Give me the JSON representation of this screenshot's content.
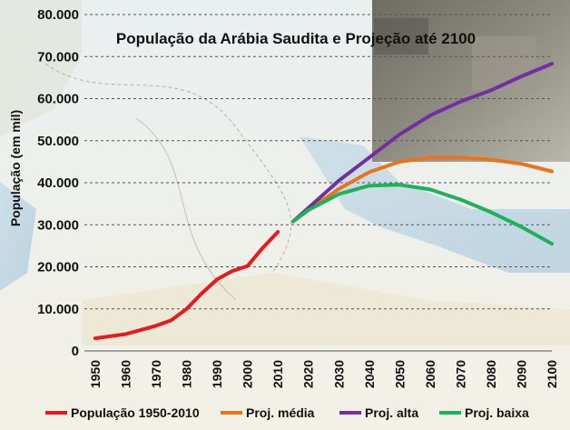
{
  "chart_data": {
    "type": "line",
    "title": "População da Arábia Saudita e Projeção até 2100",
    "ylabel": "População (em mil)",
    "xlabel": "",
    "ylim": [
      0,
      80000
    ],
    "xlim": [
      1950,
      2100
    ],
    "y_ticks": [
      "0",
      "10.000",
      "20.000",
      "30.000",
      "40.000",
      "50.000",
      "60.000",
      "70.000",
      "80.000"
    ],
    "x_ticks": [
      "1950",
      "1960",
      "1970",
      "1980",
      "1990",
      "2000",
      "2010",
      "2020",
      "2030",
      "2040",
      "2050",
      "2060",
      "2070",
      "2080",
      "2090",
      "2100"
    ],
    "grid": "horizontal dashed",
    "legend_position": "bottom",
    "series": [
      {
        "name": "População 1950-2010",
        "color": "#e8191c",
        "x": [
          1950,
          1955,
          1960,
          1965,
          1970,
          1975,
          1980,
          1985,
          1990,
          1995,
          2000,
          2005,
          2010
        ],
        "y": [
          3000,
          3500,
          4000,
          5000,
          6000,
          7300,
          10000,
          13700,
          17000,
          19000,
          20200,
          24500,
          28300
        ]
      },
      {
        "name": "Proj. média",
        "color": "#e8731c",
        "x": [
          2015,
          2020,
          2030,
          2040,
          2050,
          2060,
          2070,
          2080,
          2090,
          2100
        ],
        "y": [
          30800,
          33500,
          38500,
          42500,
          45000,
          46000,
          46000,
          45500,
          44500,
          42700
        ]
      },
      {
        "name": "Proj. alta",
        "color": "#7030a0",
        "x": [
          2015,
          2020,
          2030,
          2040,
          2050,
          2060,
          2070,
          2080,
          2090,
          2100
        ],
        "y": [
          30800,
          34000,
          40500,
          46000,
          51500,
          56000,
          59300,
          62000,
          65300,
          68300
        ]
      },
      {
        "name": "Proj. baixa",
        "color": "#1fb05a",
        "x": [
          2015,
          2020,
          2030,
          2040,
          2050,
          2060,
          2070,
          2080,
          2090,
          2100
        ],
        "y": [
          30800,
          33500,
          37300,
          39300,
          39500,
          38400,
          36000,
          33000,
          29500,
          25500
        ]
      }
    ]
  }
}
